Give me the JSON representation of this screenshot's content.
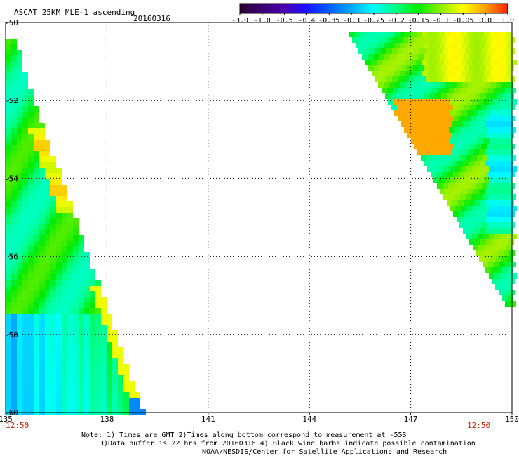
{
  "header": {
    "title": "ASCAT 25KM MLE-1 ascending",
    "date": "20160316"
  },
  "colorbar": {
    "labels": [
      "-3.0",
      "-1.0",
      "-0.5",
      "-0.4",
      "-0.35",
      "-0.3",
      "-0.25",
      "-0.2",
      "-0.15",
      "-0.1",
      "-0.05",
      "0.0",
      "1.0"
    ],
    "colors": [
      "#2a0033",
      "#3a0070",
      "#4b00b0",
      "#1a10ff",
      "#0060ff",
      "#00a8ff",
      "#00ffff",
      "#00ff80",
      "#00ee00",
      "#8cf000",
      "#ffff00",
      "#ffa000",
      "#ff2000"
    ]
  },
  "map": {
    "lat_labels": [
      "-50",
      "-52",
      "-54",
      "-56",
      "-58",
      "-60"
    ],
    "lon_labels": [
      "135",
      "138",
      "141",
      "144",
      "147",
      "150"
    ],
    "lat_range": [
      -60,
      -50
    ],
    "lon_range": [
      135,
      150
    ],
    "time_left": "12:50",
    "time_right": "12:50"
  },
  "notes": {
    "line1": "Note: 1) Times are GMT 2)Times along bottom correspond to measurement at -55S",
    "line2": "3)Data buffer is 22 hrs from 20160316 4) Black wind barbs indicate possible contamination",
    "line3": "NOAA/NESDIS/Center for Satellite Applications and Research"
  }
}
